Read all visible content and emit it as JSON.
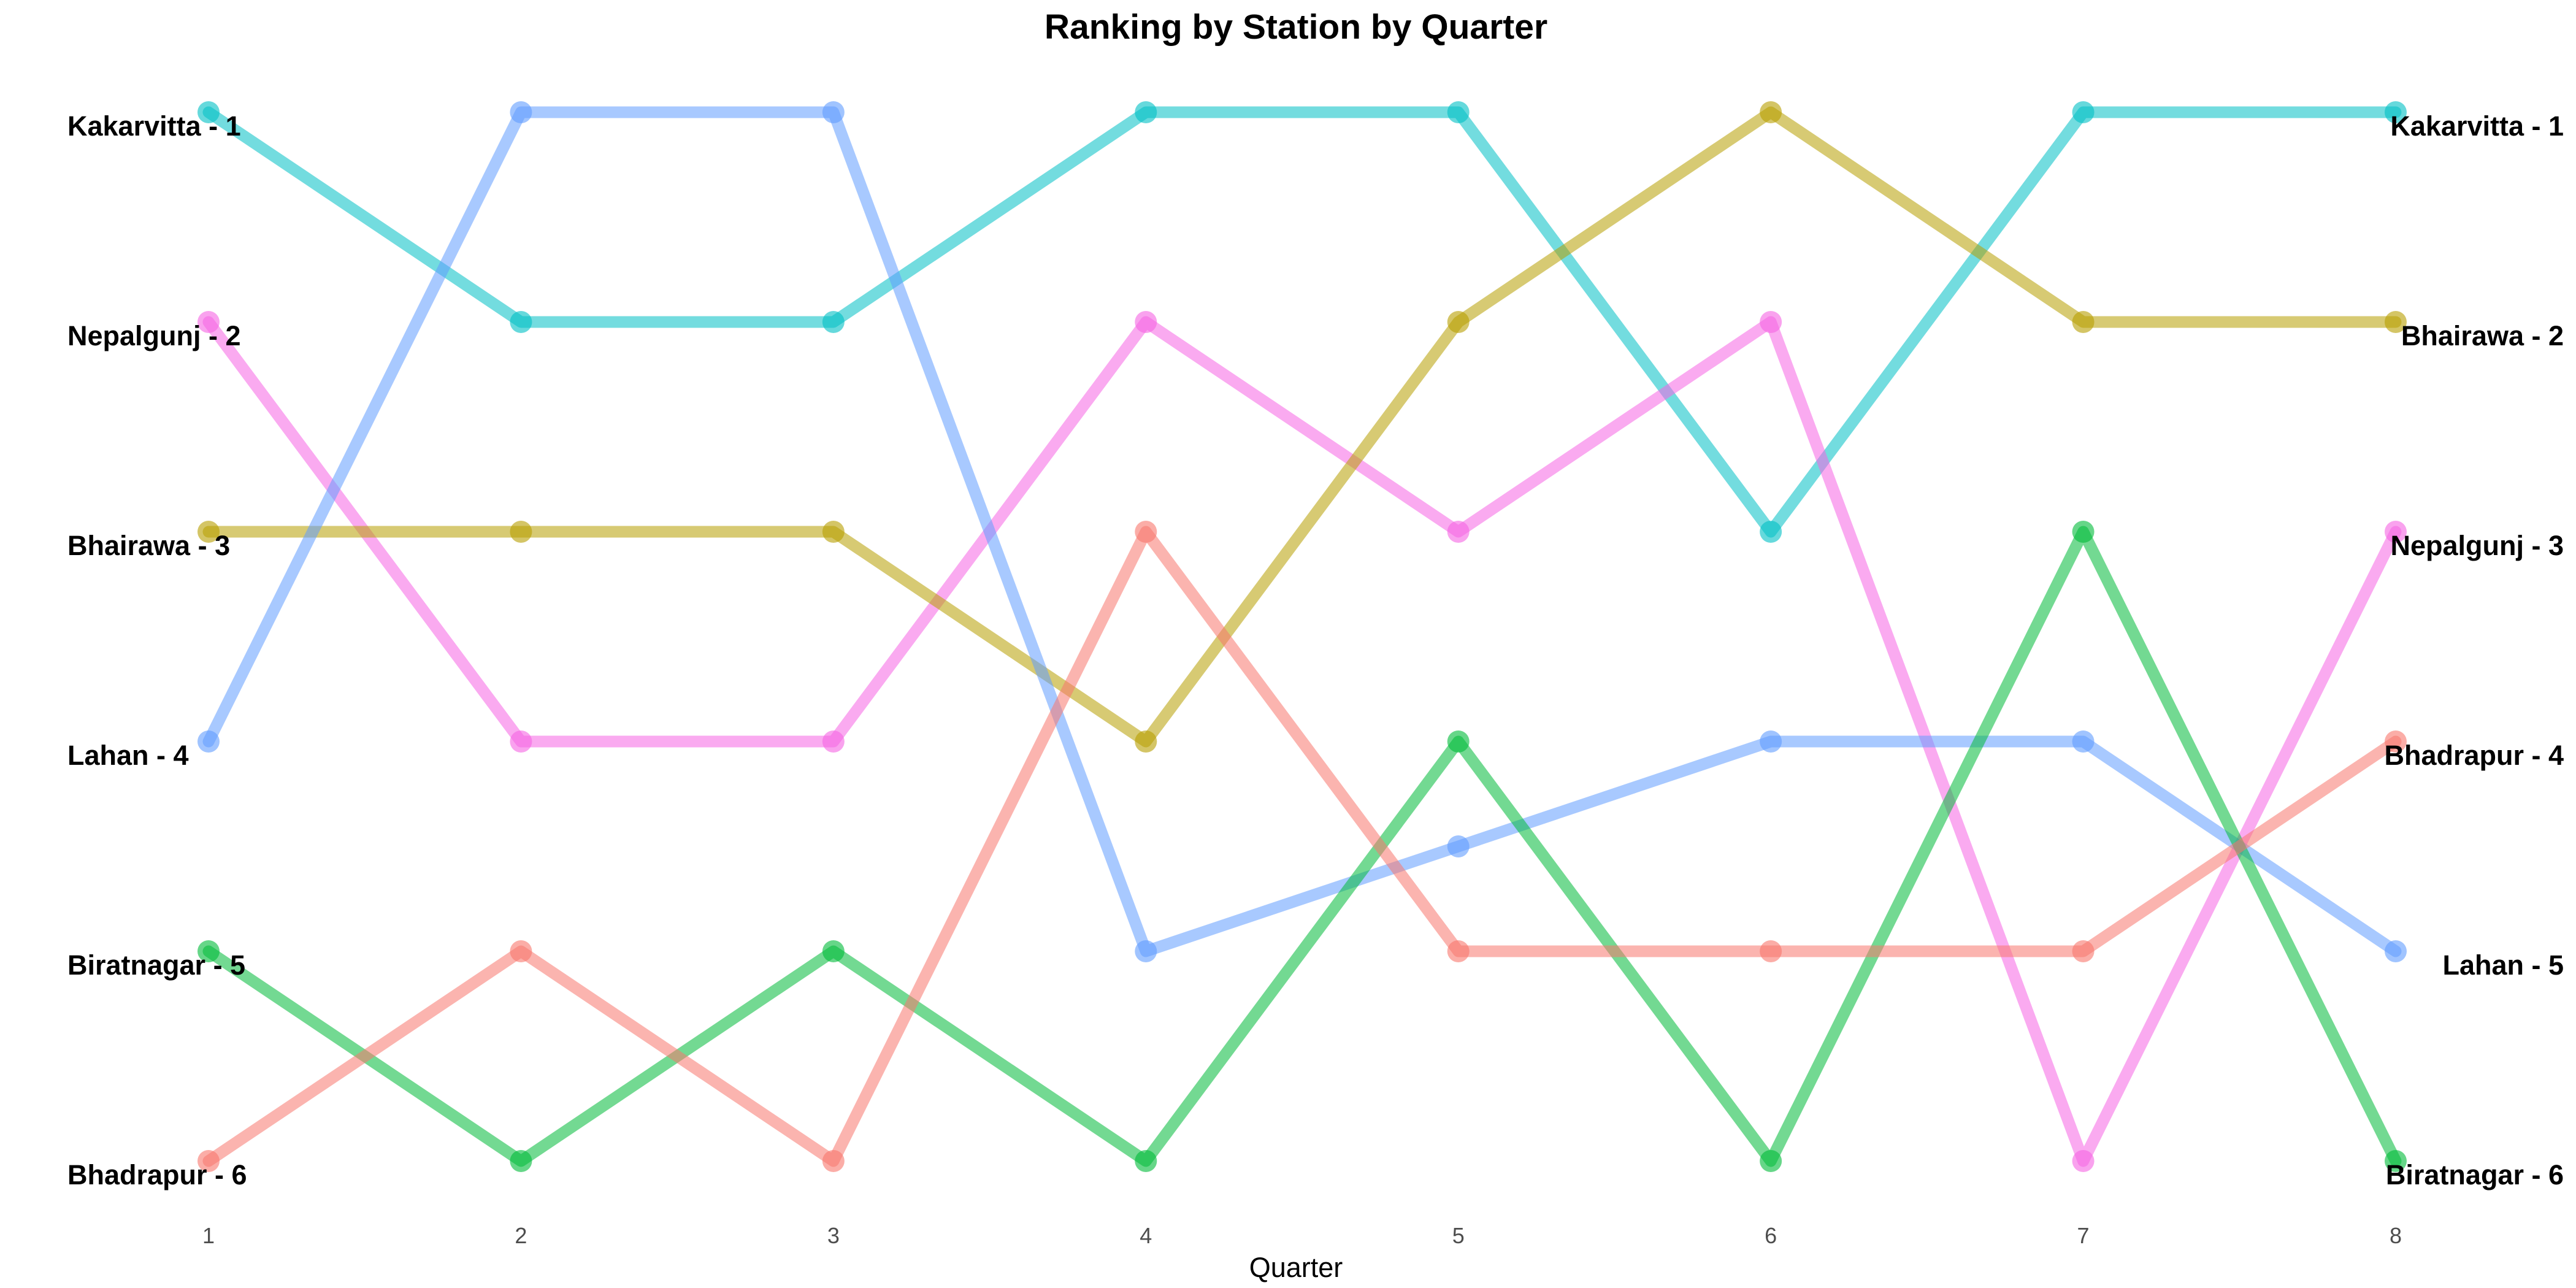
{
  "chart_data": {
    "type": "line",
    "title": "Ranking by Station by Quarter",
    "xlabel": "Quarter",
    "ylabel": "",
    "x": [
      1,
      2,
      3,
      4,
      5,
      6,
      7,
      8
    ],
    "ylim": [
      1,
      6
    ],
    "y_reversed": true,
    "grid": false,
    "legend": "none",
    "series": [
      {
        "name": "Kakarvitta",
        "color": "#00BFC4",
        "values": [
          1,
          2,
          2,
          1,
          1,
          3,
          1,
          1
        ]
      },
      {
        "name": "Nepalgunj",
        "color": "#F564E3",
        "values": [
          2,
          4,
          4,
          2,
          3,
          2,
          6,
          3
        ]
      },
      {
        "name": "Bhairawa",
        "color": "#B79F00",
        "values": [
          3,
          3,
          3,
          4,
          2,
          1,
          2,
          2
        ]
      },
      {
        "name": "Lahan",
        "color": "#619CFF",
        "values": [
          4,
          1,
          1,
          5,
          4.5,
          4,
          4,
          5
        ]
      },
      {
        "name": "Biratnagar",
        "color": "#00BA38",
        "values": [
          5,
          6,
          5,
          6,
          4,
          6,
          3,
          6
        ]
      },
      {
        "name": "Bhadrapur",
        "color": "#F8766D",
        "values": [
          6,
          5,
          6,
          3,
          5,
          5,
          5,
          4
        ]
      }
    ],
    "left_labels": [
      {
        "text": "Kakarvitta - 1",
        "rank": 1
      },
      {
        "text": "Nepalgunj - 2",
        "rank": 2
      },
      {
        "text": "Bhairawa - 3",
        "rank": 3
      },
      {
        "text": "Lahan - 4",
        "rank": 4
      },
      {
        "text": "Biratnagar - 5",
        "rank": 5
      },
      {
        "text": "Bhadrapur - 6",
        "rank": 6
      }
    ],
    "right_labels": [
      {
        "text": "Kakarvitta - 1",
        "rank": 1
      },
      {
        "text": "Bhairawa - 2",
        "rank": 2
      },
      {
        "text": "Nepalgunj - 3",
        "rank": 3
      },
      {
        "text": "Bhadrapur - 4",
        "rank": 4
      },
      {
        "text": "Lahan - 5",
        "rank": 5
      },
      {
        "text": "Biratnagar - 6",
        "rank": 6
      }
    ]
  }
}
